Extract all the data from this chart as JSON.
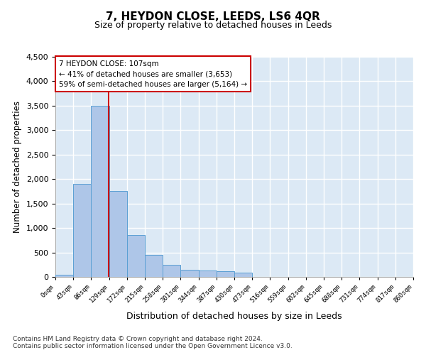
{
  "title": "7, HEYDON CLOSE, LEEDS, LS6 4QR",
  "subtitle": "Size of property relative to detached houses in Leeds",
  "xlabel": "Distribution of detached houses by size in Leeds",
  "ylabel": "Number of detached properties",
  "bar_values": [
    50,
    1900,
    3500,
    1750,
    850,
    450,
    250,
    150,
    130,
    110,
    80,
    0,
    0,
    0,
    0,
    0,
    0,
    0,
    0,
    0
  ],
  "bin_labels": [
    "0sqm",
    "43sqm",
    "86sqm",
    "129sqm",
    "172sqm",
    "215sqm",
    "258sqm",
    "301sqm",
    "344sqm",
    "387sqm",
    "430sqm",
    "473sqm",
    "516sqm",
    "559sqm",
    "602sqm",
    "645sqm",
    "688sqm",
    "731sqm",
    "774sqm",
    "817sqm",
    "860sqm"
  ],
  "bar_color": "#aec6e8",
  "bar_edge_color": "#5a9fd4",
  "vline_color": "#cc0000",
  "annotation_text": "7 HEYDON CLOSE: 107sqm\n← 41% of detached houses are smaller (3,653)\n59% of semi-detached houses are larger (5,164) →",
  "annotation_box_color": "#cc0000",
  "ylim": [
    0,
    4500
  ],
  "yticks": [
    0,
    500,
    1000,
    1500,
    2000,
    2500,
    3000,
    3500,
    4000,
    4500
  ],
  "footnote": "Contains HM Land Registry data © Crown copyright and database right 2024.\nContains public sector information licensed under the Open Government Licence v3.0.",
  "background_color": "#dce9f5",
  "grid_color": "#ffffff"
}
